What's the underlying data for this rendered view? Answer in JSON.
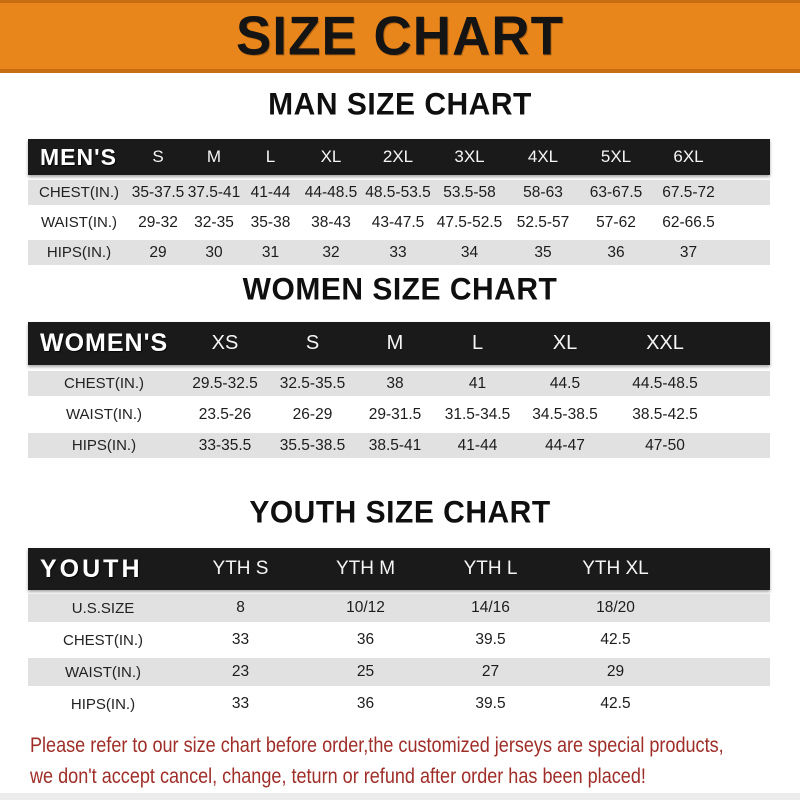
{
  "banner": {
    "title": "SIZE CHART"
  },
  "colors": {
    "banner_bg": "#E8861B",
    "banner_edge": "#C76E10",
    "bar_bg": "#1A1A1A",
    "row_alt_gray": "#E1E1E1",
    "footer_text": "#9F2D28"
  },
  "sections": [
    {
      "title": "MAN SIZE CHART",
      "group_label": "MEN'S",
      "sizes": [
        "S",
        "M",
        "L",
        "XL",
        "2XL",
        "3XL",
        "4XL",
        "5XL",
        "6XL"
      ],
      "rows": [
        {
          "label": "CHEST(IN.)",
          "values": [
            "35-37.5",
            "37.5-41",
            "41-44",
            "44-48.5",
            "48.5-53.5",
            "53.5-58",
            "58-63",
            "63-67.5",
            "67.5-72"
          ]
        },
        {
          "label": "WAIST(IN.)",
          "values": [
            "29-32",
            "32-35",
            "35-38",
            "38-43",
            "43-47.5",
            "47.5-52.5",
            "52.5-57",
            "57-62",
            "62-66.5"
          ]
        },
        {
          "label": "HIPS(IN.)",
          "values": [
            "29",
            "30",
            "31",
            "32",
            "33",
            "34",
            "35",
            "36",
            "37"
          ]
        }
      ]
    },
    {
      "title": "WOMEN SIZE CHART",
      "group_label": "WOMEN'S",
      "sizes": [
        "XS",
        "S",
        "M",
        "L",
        "XL",
        "XXL"
      ],
      "rows": [
        {
          "label": "CHEST(IN.)",
          "values": [
            "29.5-32.5",
            "32.5-35.5",
            "38",
            "41",
            "44.5",
            "44.5-48.5"
          ]
        },
        {
          "label": "WAIST(IN.)",
          "values": [
            "23.5-26",
            "26-29",
            "29-31.5",
            "31.5-34.5",
            "34.5-38.5",
            "38.5-42.5"
          ]
        },
        {
          "label": "HIPS(IN.)",
          "values": [
            "33-35.5",
            "35.5-38.5",
            "38.5-41",
            "41-44",
            "44-47",
            "47-50"
          ]
        }
      ]
    },
    {
      "title": "YOUTH SIZE CHART",
      "group_label": "YOUTH",
      "sizes": [
        "YTH S",
        "YTH M",
        "YTH L",
        "YTH XL"
      ],
      "rows": [
        {
          "label": "U.S.SIZE",
          "values": [
            "8",
            "10/12",
            "14/16",
            "18/20"
          ]
        },
        {
          "label": "CHEST(IN.)",
          "values": [
            "33",
            "36",
            "39.5",
            "42.5"
          ]
        },
        {
          "label": "WAIST(IN.)",
          "values": [
            "23",
            "25",
            "27",
            "29"
          ]
        },
        {
          "label": "HIPS(IN.)",
          "values": [
            "33",
            "36",
            "39.5",
            "42.5"
          ]
        }
      ]
    }
  ],
  "footer": {
    "line1": "Please refer to our size chart before order,the customized jerseys are special products,",
    "line2": "we don't accept cancel, change, teturn or refund after order has been placed!"
  }
}
